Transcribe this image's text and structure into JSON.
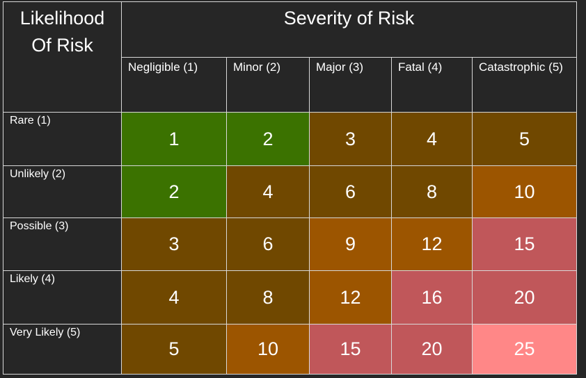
{
  "title_likelihood_line1": "Likelihood",
  "title_likelihood_line2": "Of Risk",
  "title_severity": "Severity of Risk",
  "columns": [
    "Negligible (1)",
    "Minor (2)",
    "Major (3)",
    "Fatal (4)",
    "Catastrophic (5)"
  ],
  "rows": [
    {
      "label": "Rare (1)",
      "values": [
        "1",
        "2",
        "3",
        "4",
        "5"
      ]
    },
    {
      "label": "Unlikely (2)",
      "values": [
        "2",
        "4",
        "6",
        "8",
        "10"
      ]
    },
    {
      "label": "Possible (3)",
      "values": [
        "3",
        "6",
        "9",
        "12",
        "15"
      ]
    },
    {
      "label": "Likely (4)",
      "values": [
        "4",
        "8",
        "12",
        "16",
        "20"
      ]
    },
    {
      "label": "Very Likely (5)",
      "values": [
        "5",
        "10",
        "15",
        "20",
        "25"
      ]
    }
  ],
  "colors": {
    "green": "#3b7200",
    "brown": "#704800",
    "orange": "#9c5500",
    "red": "#c0575a",
    "pink": "#ff8787",
    "background": "#262626"
  }
}
